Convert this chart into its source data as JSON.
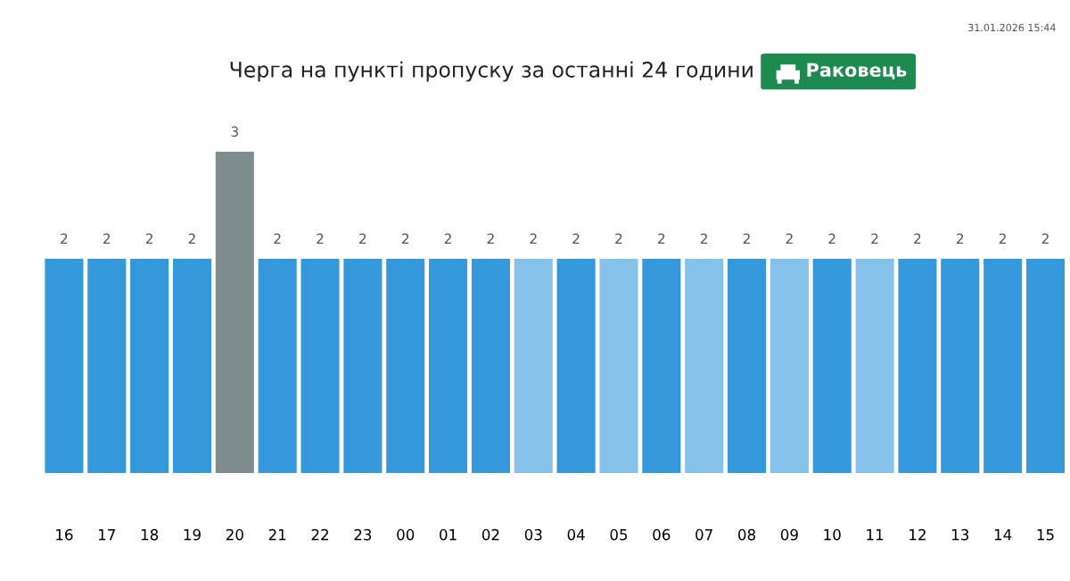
{
  "chart_data": {
    "type": "bar",
    "title": "Черга на пункті пропуску за останні 24 години",
    "subtitle": "Раковець",
    "categories": [
      "16",
      "17",
      "18",
      "19",
      "20",
      "21",
      "22",
      "23",
      "00",
      "01",
      "02",
      "03",
      "04",
      "05",
      "06",
      "07",
      "08",
      "09",
      "10",
      "11",
      "12",
      "13",
      "14",
      "15"
    ],
    "values": [
      2,
      2,
      2,
      2,
      3,
      2,
      2,
      2,
      2,
      2,
      2,
      2,
      2,
      2,
      2,
      2,
      2,
      2,
      2,
      2,
      2,
      2,
      2,
      2
    ],
    "colors": [
      "#3598db",
      "#3598db",
      "#3598db",
      "#3598db",
      "#7f8c8d",
      "#3598db",
      "#3598db",
      "#3598db",
      "#3598db",
      "#3598db",
      "#3598db",
      "#85c1e9",
      "#3598db",
      "#85c1e9",
      "#3598db",
      "#85c1e9",
      "#3598db",
      "#85c1e9",
      "#3598db",
      "#85c1e9",
      "#3598db",
      "#3598db",
      "#3598db",
      "#3598db"
    ],
    "data_labels": true,
    "grid": false,
    "legend": false,
    "annotations": [
      "31.01.2026 15:44"
    ]
  }
}
